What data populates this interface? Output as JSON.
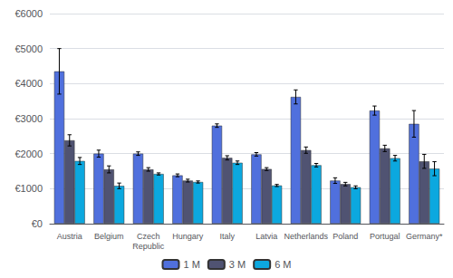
{
  "chart_data": {
    "type": "bar",
    "categories": [
      "Austria",
      "Belgium",
      "Czech\nRepublic",
      "Hungary",
      "Italy",
      "Latvia",
      "Netherlands",
      "Poland",
      "Portugal",
      "Germany*"
    ],
    "series": [
      {
        "name": "1 M",
        "values": [
          4350,
          2000,
          2000,
          1380,
          2800,
          1980,
          3620,
          1230,
          3230,
          2850
        ],
        "errors": [
          650,
          100,
          50,
          40,
          50,
          50,
          200,
          80,
          130,
          380
        ]
      },
      {
        "name": "3 M",
        "values": [
          2380,
          1550,
          1550,
          1230,
          1880,
          1560,
          2100,
          1130,
          2150,
          1780
        ],
        "errors": [
          160,
          100,
          50,
          40,
          60,
          40,
          90,
          50,
          90,
          200
        ]
      },
      {
        "name": "6 M",
        "values": [
          1790,
          1080,
          1420,
          1190,
          1740,
          1090,
          1670,
          1040,
          1870,
          1570
        ],
        "errors": [
          100,
          80,
          30,
          30,
          50,
          30,
          50,
          40,
          80,
          200
        ]
      }
    ],
    "ylim": [
      0,
      6000
    ],
    "yticks": [
      {
        "value": 0,
        "label": "€0"
      },
      {
        "value": 1000,
        "label": "€1000"
      },
      {
        "value": 2000,
        "label": "€2000"
      },
      {
        "value": 3000,
        "label": "€3000"
      },
      {
        "value": 4000,
        "label": "€4000"
      },
      {
        "value": 5000,
        "label": "€5000"
      },
      {
        "value": 6000,
        "label": "€6000"
      }
    ],
    "grid": true,
    "legend": "bottom"
  }
}
